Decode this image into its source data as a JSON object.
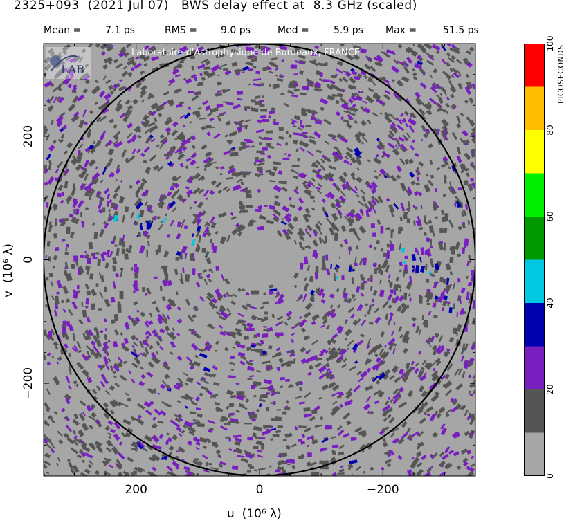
{
  "title": "2325+093  (2021 Jul 07)   BWS delay effect at  8.3 GHz (scaled)",
  "stats": [
    {
      "label": "Mean =",
      "value": "7.1 ps"
    },
    {
      "label": "RMS =",
      "value": "9.0 ps"
    },
    {
      "label": "Med =",
      "value": "5.9 ps"
    },
    {
      "label": "Max =",
      "value": "51.5 ps"
    }
  ],
  "watermark": "Laboratoire d'Astrophysique de Bordeaux, FRANCE",
  "logo_text": "LAB",
  "chart_data": {
    "type": "heatmap",
    "xlabel": "u  (10⁶ λ)",
    "ylabel": "v  (10⁶ λ)",
    "xlim": [
      350,
      -350
    ],
    "ylim": [
      -350,
      350
    ],
    "xticks": [
      200,
      0,
      -200
    ],
    "xtick_labels": [
      "200",
      "0",
      "−200"
    ],
    "yticks": [
      200,
      0,
      -200
    ],
    "ytick_labels": [
      "200",
      "0",
      "−200"
    ],
    "circle_radius": 350,
    "colorbar": {
      "label": "PICOSECONDS",
      "range": [
        0,
        100
      ],
      "ticks": [
        0,
        20,
        40,
        60,
        80,
        100
      ],
      "bins": [
        {
          "from": 0,
          "to": 10,
          "color": "#a6a6a6"
        },
        {
          "from": 10,
          "to": 20,
          "color": "#555555"
        },
        {
          "from": 20,
          "to": 30,
          "color": "#7a1fbf"
        },
        {
          "from": 30,
          "to": 40,
          "color": "#0000b0"
        },
        {
          "from": 40,
          "to": 50,
          "color": "#00c8e0"
        },
        {
          "from": 50,
          "to": 60,
          "color": "#009a00"
        },
        {
          "from": 60,
          "to": 70,
          "color": "#00ee00"
        },
        {
          "from": 70,
          "to": 80,
          "color": "#ffff00"
        },
        {
          "from": 80,
          "to": 90,
          "color": "#ffbf00"
        },
        {
          "from": 90,
          "to": 100,
          "color": "#ff0000"
        }
      ]
    }
  }
}
